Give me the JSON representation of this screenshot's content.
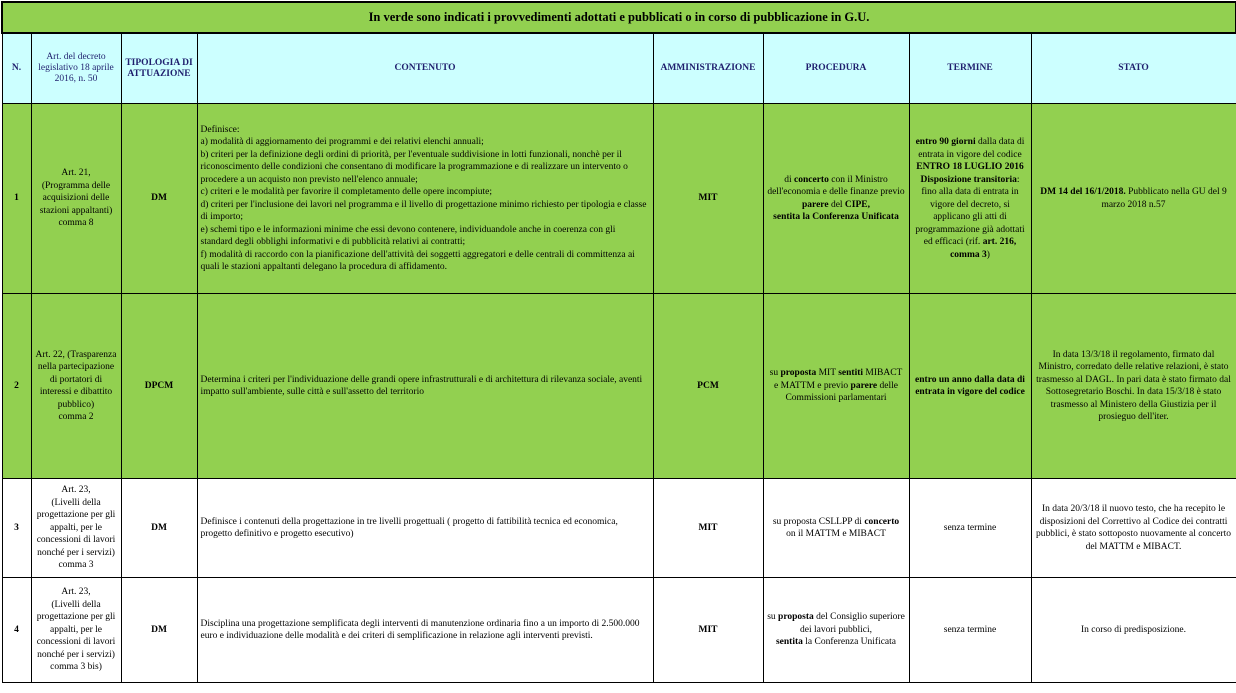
{
  "title": "In verde sono indicati i provvedimenti adottati e pubblicati o in corso di pubblicazione in G.U.",
  "colors": {
    "published_row": "#92d050",
    "header_bg": "#ccffff",
    "pending_row": "#ffffff"
  },
  "headers": {
    "n": "N.",
    "art": "Art. del decreto legislativo 18 aprile 2016, n. 50",
    "tipologia": "TIPOLOGIA DI ATTUAZIONE",
    "contenuto": "CONTENUTO",
    "amministrazione": "AMMINISTRAZIONE",
    "procedura": "PROCEDURA",
    "termine": "TERMINE",
    "stato": "STATO"
  },
  "rows": [
    {
      "status": "published",
      "n": "1",
      "art": "Art. 21,\n(Programma delle acquisizioni delle stazioni appaltanti)\ncomma 8",
      "tipologia": "DM",
      "contenuto": "Definisce:\na) modalità di aggiornamento dei programmi e dei relativi elenchi annuali;\nb) criteri per la definizione degli ordini di priorità, per l'eventuale suddivisione in lotti funzionali, nonchè per il riconoscimento delle condizioni che consentano di modificare la programmazione e di realizzare un intervento o procedere a un acquisto non previsto nell'elenco annuale;\n c) criteri e le modalità per favorire il completamento delle opere incompiute;\n d) criteri per l'inclusione dei lavori nel programma e il livello di progettazione minimo richiesto per tipologia e classe di importo;\n e) schemi tipo e le informazioni minime che essi devono contenere, individuandole anche in coerenza con gli standard degli obblighi informativi e di pubblicità relativi ai contratti;\n f) modalità di raccordo con la pianificazione dell'attività dei soggetti aggregatori e delle centrali di committenza ai quali le stazioni appaltanti delegano la procedura di affidamento.",
      "amministrazione": "MIT",
      "procedura": [
        {
          "t": "di ",
          "b": false
        },
        {
          "t": "concerto",
          "b": true
        },
        {
          "t": " con il Ministro dell'economia e delle finanze previo ",
          "b": false
        },
        {
          "t": "parere",
          "b": true
        },
        {
          "t": " del ",
          "b": false
        },
        {
          "t": "CIPE,\nsentita la Conferenza Unificata",
          "b": true
        }
      ],
      "termine": [
        {
          "t": "entro 90 giorni",
          "b": true
        },
        {
          "t": " dalla data di entrata in vigore del codice\n",
          "b": false
        },
        {
          "t": "ENTRO 18 LUGLIO 2016\n Disposizione transitoria",
          "b": true
        },
        {
          "t": ": fino alla data di entrata in vigore del decreto, si applicano gli atti di programmazione già adottati ed efficaci (rif. ",
          "b": false
        },
        {
          "t": "art. 216, comma 3",
          "b": true
        },
        {
          "t": ")",
          "b": false
        }
      ],
      "stato": [
        {
          "t": "DM 14 del 16/1/2018.",
          "b": true
        },
        {
          "t": " Pubblicato nella GU del 9 marzo 2018 n.57",
          "b": false
        }
      ]
    },
    {
      "status": "published",
      "n": "2",
      "art": "Art. 22, (Trasparenza nella partecipazione di portatori di interessi e dibattito pubblico)\ncomma 2",
      "tipologia": "DPCM",
      "contenuto": "Determina i criteri per l'individuazione delle grandi opere infrastrutturali e di architettura di rilevanza sociale, aventi impatto sull'ambiente, sulle città e sull'assetto del territorio",
      "amministrazione": "PCM",
      "procedura": [
        {
          "t": "su ",
          "b": false
        },
        {
          "t": "proposta",
          "b": true
        },
        {
          "t": " MIT ",
          "b": false
        },
        {
          "t": "sentiti",
          "b": true
        },
        {
          "t": " MIBACT e MATTM e previo ",
          "b": false
        },
        {
          "t": "parere",
          "b": true
        },
        {
          "t": " delle Commissioni parlamentari",
          "b": false
        }
      ],
      "termine": [
        {
          "t": "entro un anno dalla data di entrata in vigore del codice",
          "b": true
        }
      ],
      "stato": [
        {
          "t": "In data 13/3/18 il regolamento, firmato dal Ministro, corredato delle relative relazioni, è stato trasmesso  al DAGL. In pari data è stato firmato dal Sottosegretario Boschi. In data 15/3/18 è stato trasmesso al Ministero della Giustizia per il prosieguo dell'iter.",
          "b": false
        }
      ]
    },
    {
      "status": "pending",
      "n": "3",
      "art": "Art. 23,\n(Livelli della progettazione per gli appalti, per le concessioni di lavori nonché per i servizi)\ncomma 3",
      "tipologia": "DM",
      "contenuto": "Definisce i contenuti della progettazione in tre livelli progettuali ( progetto di fattibilità tecnica ed economica, progetto definitivo e progetto esecutivo)",
      "amministrazione": "MIT",
      "procedura": [
        {
          "t": "su proposta CSLLPP di ",
          "b": false
        },
        {
          "t": "concerto",
          "b": true
        },
        {
          "t": "\non il MATTM e MIBACT",
          "b": false
        }
      ],
      "termine": [
        {
          "t": "senza termine",
          "b": false
        }
      ],
      "stato": [
        {
          "t": "In data 20/3/18 il nuovo testo, che ha recepito le disposizioni del Correttivo al Codice dei contratti pubblici, è stato sottoposto nuovamente al concerto del MATTM e MIBACT.",
          "b": false
        }
      ]
    },
    {
      "status": "pending",
      "n": "4",
      "art": "Art. 23,\n(Livelli della progettazione per gli appalti, per le concessioni di lavori nonché per i servizi)\ncomma 3 bis)",
      "tipologia": "DM",
      "contenuto": "Disciplina una progettazione  semplificata degli interventi di manutenzione  ordinaria  fino  a  un  importo  di 2.500.000 euro e individuazione delle modalità  e dei  criteri  di semplificazione in relazione agli interventi previsti.",
      "amministrazione": "MIT",
      "procedura": [
        {
          "t": "su ",
          "b": false
        },
        {
          "t": "proposta",
          "b": true
        },
        {
          "t": " del Consiglio superiore dei lavori pubblici,\n",
          "b": false
        },
        {
          "t": "sentita",
          "b": true
        },
        {
          "t": "  la Conferenza Unificata",
          "b": false
        }
      ],
      "termine": [
        {
          "t": "senza termine",
          "b": false
        }
      ],
      "stato": [
        {
          "t": "In corso di predisposizione.",
          "b": false
        }
      ]
    }
  ]
}
